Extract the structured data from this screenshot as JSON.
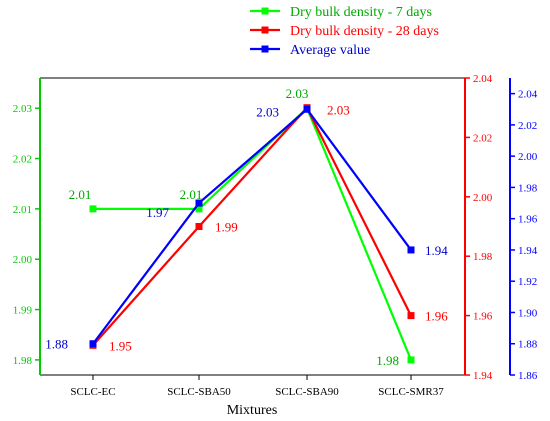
{
  "chart_data": {
    "type": "line",
    "xlabel": "Mixtures",
    "categories": [
      "SCLC-EC",
      "SCLC-SBA50",
      "SCLC-SBA90",
      "SCLC-SMR37"
    ],
    "axes": {
      "left": {
        "color": "#00cc00",
        "range": [
          1.977,
          2.036
        ],
        "ticks": [
          1.98,
          1.99,
          2.0,
          2.01,
          2.02,
          2.03
        ],
        "tick_labels": [
          "1.98",
          "1.99",
          "2.00",
          "2.01",
          "2.02",
          "2.03"
        ]
      },
      "right1": {
        "color": "#ff0000",
        "range": [
          1.94,
          2.04
        ],
        "ticks": [
          1.94,
          1.96,
          1.98,
          2.0,
          2.02,
          2.04
        ],
        "tick_labels": [
          "1.94",
          "1.96",
          "1.98",
          "2.00",
          "2.02",
          "2.04"
        ]
      },
      "right2": {
        "color": "#0000ff",
        "range": [
          1.86,
          2.05
        ],
        "ticks": [
          1.86,
          1.88,
          1.9,
          1.92,
          1.94,
          1.96,
          1.98,
          2.0,
          2.02,
          2.04
        ],
        "tick_labels": [
          "1.86",
          "1.88",
          "1.90",
          "1.92",
          "1.94",
          "1.96",
          "1.98",
          "2.00",
          "2.02",
          "2.04"
        ]
      }
    },
    "series": [
      {
        "name": "Dry bulk density - 7 days",
        "axis": "left",
        "color": "#00ff00",
        "label_color": "#00aa00",
        "values": [
          2.01,
          2.01,
          2.03,
          1.98
        ],
        "labels": [
          "2.01",
          "2.01",
          "2.03",
          "1.98"
        ]
      },
      {
        "name": "Dry bulk density - 28 days",
        "axis": "right1",
        "color": "#ff0000",
        "label_color": "#ff0000",
        "values": [
          1.95,
          1.99,
          2.03,
          1.96
        ],
        "labels": [
          "1.95",
          "1.99",
          "2.03",
          "1.96"
        ]
      },
      {
        "name": "Average value",
        "axis": "right2",
        "color": "#0000ff",
        "label_color": "#0000cc",
        "values": [
          1.88,
          1.97,
          2.03,
          1.94
        ],
        "labels": [
          "1.88",
          "1.97",
          "2.03",
          "1.94"
        ]
      }
    ],
    "legend": "top-center",
    "grid": false
  }
}
